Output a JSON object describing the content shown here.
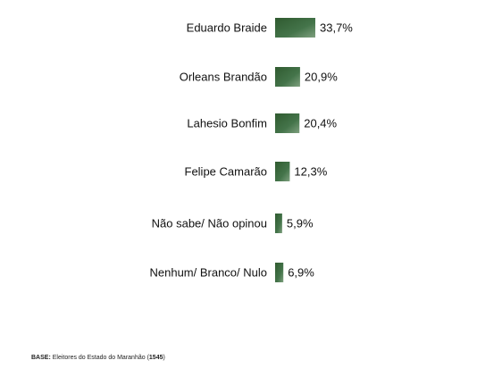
{
  "chart_data": {
    "type": "bar",
    "orientation": "horizontal",
    "categories": [
      "Eduardo Braide",
      "Orleans Brandão",
      "Lahesio Bonfim",
      "Felipe Camarão",
      "Não sabe/ Não opinou",
      "Nenhum/ Branco/ Nulo"
    ],
    "values": [
      33.7,
      20.9,
      20.4,
      12.3,
      5.9,
      6.9
    ],
    "value_labels": [
      "33,7%",
      "20,9%",
      "20,4%",
      "12,3%",
      "5,9%",
      "6,9%"
    ],
    "bar_color": "#3d6b3d",
    "grid": false,
    "legend": "none"
  },
  "footnote": {
    "prefix": "BASE:",
    "text": " Eleitores do Estado do Maranhão (",
    "count": "1545",
    "suffix": ")"
  }
}
